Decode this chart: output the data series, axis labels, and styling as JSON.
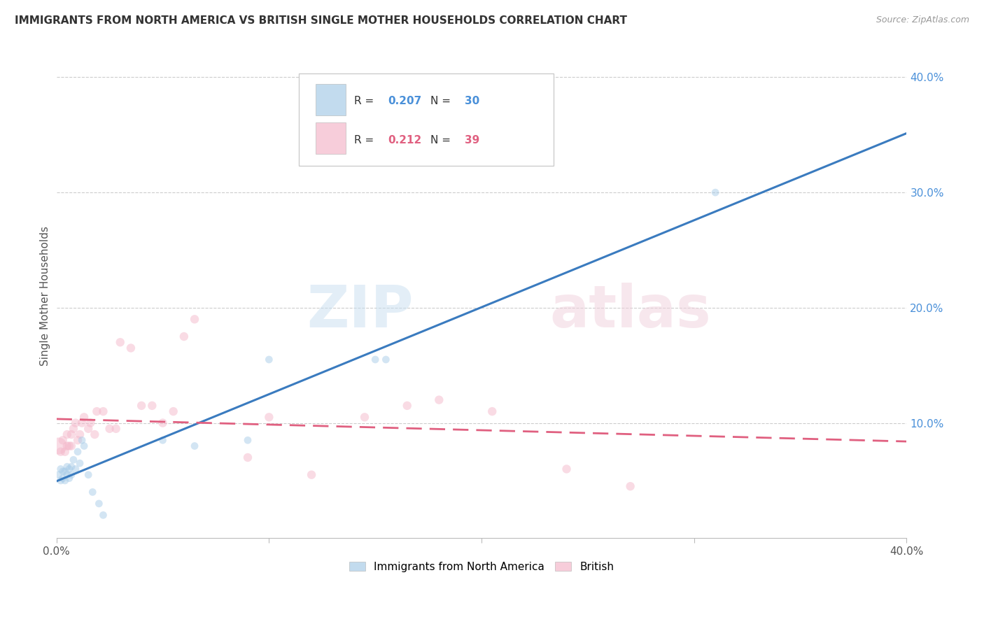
{
  "title": "IMMIGRANTS FROM NORTH AMERICA VS BRITISH SINGLE MOTHER HOUSEHOLDS CORRELATION CHART",
  "source": "Source: ZipAtlas.com",
  "ylabel": "Single Mother Households",
  "xlim": [
    0.0,
    0.4
  ],
  "ylim": [
    0.0,
    0.42
  ],
  "legend1_label": "Immigrants from North America",
  "legend2_label": "British",
  "R1": "0.207",
  "N1": "30",
  "R2": "0.212",
  "N2": "39",
  "color_blue": "#a8cce8",
  "color_pink": "#f4b8cb",
  "color_blue_line": "#3a7bbf",
  "color_pink_line": "#e06080",
  "color_blue_text": "#4a90d9",
  "color_pink_text": "#e06080",
  "blue_points_x": [
    0.001,
    0.002,
    0.002,
    0.003,
    0.003,
    0.004,
    0.004,
    0.005,
    0.005,
    0.006,
    0.006,
    0.007,
    0.007,
    0.008,
    0.009,
    0.01,
    0.011,
    0.012,
    0.013,
    0.015,
    0.017,
    0.02,
    0.022,
    0.05,
    0.065,
    0.09,
    0.1,
    0.15,
    0.155,
    0.31
  ],
  "blue_points_y": [
    0.055,
    0.06,
    0.05,
    0.058,
    0.052,
    0.058,
    0.05,
    0.062,
    0.055,
    0.06,
    0.052,
    0.062,
    0.055,
    0.068,
    0.06,
    0.075,
    0.065,
    0.085,
    0.08,
    0.055,
    0.04,
    0.03,
    0.02,
    0.085,
    0.08,
    0.085,
    0.155,
    0.155,
    0.155,
    0.3
  ],
  "pink_points_x": [
    0.001,
    0.002,
    0.003,
    0.004,
    0.005,
    0.005,
    0.006,
    0.007,
    0.007,
    0.008,
    0.009,
    0.01,
    0.011,
    0.012,
    0.013,
    0.015,
    0.016,
    0.018,
    0.019,
    0.022,
    0.025,
    0.028,
    0.03,
    0.035,
    0.04,
    0.045,
    0.05,
    0.055,
    0.06,
    0.065,
    0.09,
    0.1,
    0.12,
    0.145,
    0.165,
    0.18,
    0.205,
    0.24,
    0.27
  ],
  "pink_points_y": [
    0.08,
    0.075,
    0.085,
    0.075,
    0.08,
    0.09,
    0.08,
    0.08,
    0.09,
    0.095,
    0.1,
    0.085,
    0.09,
    0.1,
    0.105,
    0.095,
    0.1,
    0.09,
    0.11,
    0.11,
    0.095,
    0.095,
    0.17,
    0.165,
    0.115,
    0.115,
    0.1,
    0.11,
    0.175,
    0.19,
    0.07,
    0.105,
    0.055,
    0.105,
    0.115,
    0.12,
    0.11,
    0.06,
    0.045
  ],
  "blue_point_sizes": [
    60,
    60,
    60,
    60,
    60,
    60,
    60,
    60,
    60,
    60,
    60,
    60,
    60,
    60,
    60,
    60,
    60,
    60,
    60,
    60,
    60,
    60,
    60,
    60,
    60,
    60,
    60,
    60,
    60,
    60
  ],
  "pink_point_sizes": [
    300,
    80,
    80,
    80,
    80,
    80,
    80,
    80,
    80,
    80,
    80,
    80,
    80,
    80,
    80,
    80,
    80,
    80,
    80,
    80,
    80,
    80,
    80,
    80,
    80,
    80,
    80,
    80,
    80,
    80,
    80,
    80,
    80,
    80,
    80,
    80,
    80,
    80,
    80
  ]
}
